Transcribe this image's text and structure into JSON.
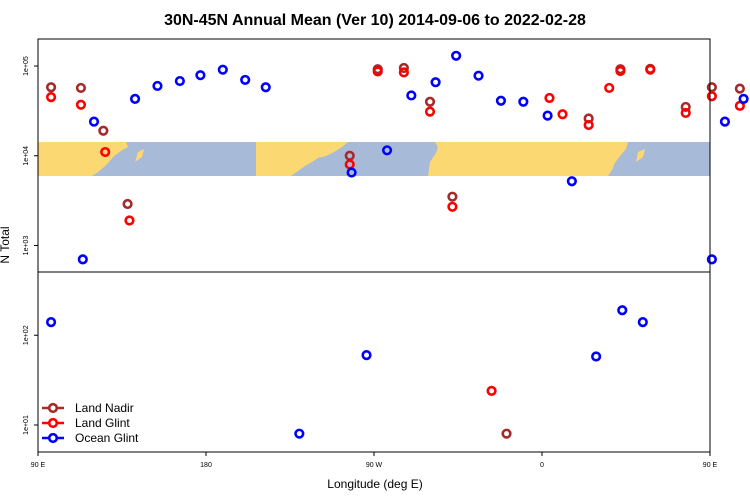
{
  "chart_data": {
    "type": "scatter",
    "title": "30N-45N Annual Mean (Ver 10)   2014-09-06 to 2022-02-28",
    "xlabel": "Longitude (deg E)",
    "ylabel": "N Total",
    "x_axis": {
      "range": [
        90,
        450
      ],
      "ticks": [
        {
          "value": 90,
          "label": "90 E"
        },
        {
          "value": 180,
          "label": "180"
        },
        {
          "value": 270,
          "label": "90 W"
        },
        {
          "value": 360,
          "label": "0"
        },
        {
          "value": 450,
          "label": "90 E"
        },
        {
          "value": 540,
          "label": "180"
        }
      ]
    },
    "y_axis": {
      "scale": "log",
      "range": [
        5,
        200000
      ],
      "ticks": [
        {
          "value": 10,
          "label": "1e+01"
        },
        {
          "value": 100,
          "label": "1e+02"
        },
        {
          "value": 1000,
          "label": "1e+03"
        },
        {
          "value": 10000,
          "label": "1e+04"
        },
        {
          "value": 100000,
          "label": "1e+05"
        }
      ]
    },
    "legend_position": "bottom-left",
    "series": [
      {
        "name": "Land Nadir",
        "color": "#a52a2a",
        "points": [
          {
            "x": 97,
            "y": 58000
          },
          {
            "x": 113,
            "y": 57000
          },
          {
            "x": 125,
            "y": 19000
          },
          {
            "x": 138,
            "y": 2900
          },
          {
            "x": 257,
            "y": 10000
          },
          {
            "x": 272,
            "y": 92000
          },
          {
            "x": 286,
            "y": 95000
          },
          {
            "x": 300,
            "y": 40000
          },
          {
            "x": 312,
            "y": 3500
          },
          {
            "x": 341,
            "y": 8
          },
          {
            "x": 385,
            "y": 26000
          },
          {
            "x": 402,
            "y": 92000
          },
          {
            "x": 418,
            "y": 93000
          },
          {
            "x": 437,
            "y": 35000
          },
          {
            "x": 451,
            "y": 58000
          },
          {
            "x": 466,
            "y": 56000
          },
          {
            "x": 479,
            "y": 19000
          },
          {
            "x": 494,
            "y": 2900
          }
        ]
      },
      {
        "name": "Land Glint",
        "color": "#ff0000",
        "points": [
          {
            "x": 97,
            "y": 45000
          },
          {
            "x": 113,
            "y": 37000
          },
          {
            "x": 126,
            "y": 11000
          },
          {
            "x": 139,
            "y": 1900
          },
          {
            "x": 257,
            "y": 8000
          },
          {
            "x": 272,
            "y": 87000
          },
          {
            "x": 286,
            "y": 85000
          },
          {
            "x": 300,
            "y": 31000
          },
          {
            "x": 312,
            "y": 2700
          },
          {
            "x": 333,
            "y": 24
          },
          {
            "x": 364,
            "y": 44000
          },
          {
            "x": 371,
            "y": 29000
          },
          {
            "x": 385,
            "y": 22000
          },
          {
            "x": 396,
            "y": 57000
          },
          {
            "x": 402,
            "y": 88000
          },
          {
            "x": 418,
            "y": 91000
          },
          {
            "x": 437,
            "y": 30000
          },
          {
            "x": 451,
            "y": 46000
          },
          {
            "x": 466,
            "y": 36000
          },
          {
            "x": 480,
            "y": 11000
          },
          {
            "x": 494,
            "y": 1900
          }
        ]
      },
      {
        "name": "Ocean Glint",
        "color": "#0000ff",
        "points": [
          {
            "x": 97,
            "y": 140
          },
          {
            "x": 114,
            "y": 700
          },
          {
            "x": 120,
            "y": 24000
          },
          {
            "x": 142,
            "y": 43000
          },
          {
            "x": 154,
            "y": 60000
          },
          {
            "x": 166,
            "y": 68000
          },
          {
            "x": 177,
            "y": 79000
          },
          {
            "x": 189,
            "y": 91000
          },
          {
            "x": 201,
            "y": 70000
          },
          {
            "x": 212,
            "y": 58000
          },
          {
            "x": 230,
            "y": 8
          },
          {
            "x": 258,
            "y": 6500
          },
          {
            "x": 266,
            "y": 60
          },
          {
            "x": 277,
            "y": 11500
          },
          {
            "x": 290,
            "y": 47000
          },
          {
            "x": 303,
            "y": 66000
          },
          {
            "x": 314,
            "y": 130000
          },
          {
            "x": 326,
            "y": 78000
          },
          {
            "x": 338,
            "y": 41000
          },
          {
            "x": 350,
            "y": 40000
          },
          {
            "x": 363,
            "y": 28000
          },
          {
            "x": 376,
            "y": 5200
          },
          {
            "x": 389,
            "y": 58
          },
          {
            "x": 403,
            "y": 190
          },
          {
            "x": 414,
            "y": 140
          },
          {
            "x": 451,
            "y": 700
          },
          {
            "x": 458,
            "y": 24000
          },
          {
            "x": 468,
            "y": 43000
          },
          {
            "x": 479,
            "y": 60000
          },
          {
            "x": 490,
            "y": 68000
          }
        ]
      }
    ]
  }
}
